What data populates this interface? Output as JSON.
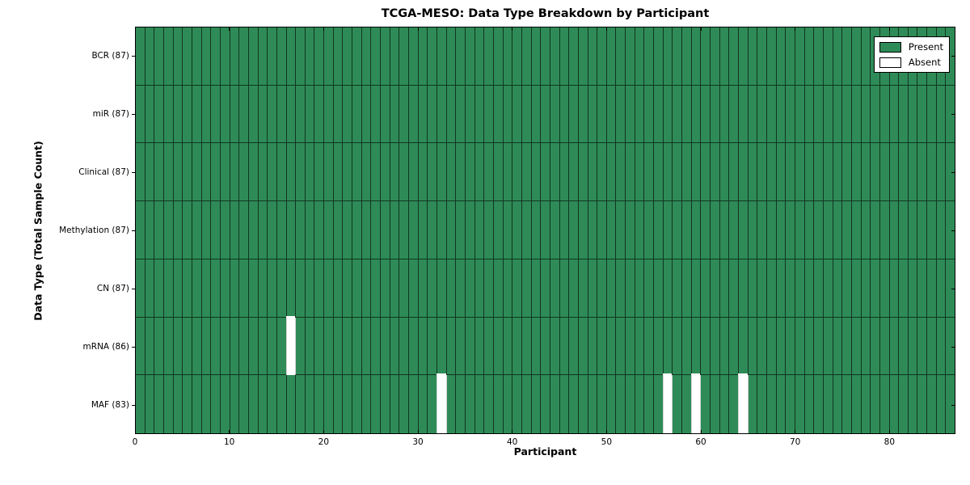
{
  "chart_data": {
    "type": "heatmap",
    "title": "TCGA-MESO: Data Type Breakdown by Participant",
    "xlabel": "Participant",
    "ylabel": "Data Type (Total Sample Count)",
    "xlim": [
      0,
      87
    ],
    "n_participants": 87,
    "x_ticks": [
      0,
      10,
      20,
      30,
      40,
      50,
      60,
      70,
      80
    ],
    "rows": [
      {
        "data_type": "BCR",
        "label": "BCR (87)",
        "present_count": 87,
        "absent_participants": []
      },
      {
        "data_type": "miR",
        "label": "miR (87)",
        "present_count": 87,
        "absent_participants": []
      },
      {
        "data_type": "Clinical",
        "label": "Clinical (87)",
        "present_count": 87,
        "absent_participants": []
      },
      {
        "data_type": "Methylation",
        "label": "Methylation (87)",
        "present_count": 87,
        "absent_participants": []
      },
      {
        "data_type": "CN",
        "label": "CN (87)",
        "present_count": 87,
        "absent_participants": []
      },
      {
        "data_type": "mRNA",
        "label": "mRNA (86)",
        "present_count": 86,
        "absent_participants": [
          16
        ]
      },
      {
        "data_type": "MAF",
        "label": "MAF (83)",
        "present_count": 83,
        "absent_participants": [
          32,
          56,
          59,
          64
        ]
      }
    ],
    "legend": {
      "position": "upper right",
      "entries": [
        {
          "label": "Present",
          "color": "#2E8B57"
        },
        {
          "label": "Absent",
          "color": "#FFFFFF"
        }
      ]
    },
    "colors": {
      "present": "#2E8B57",
      "absent": "#FFFFFF",
      "edge": "#000000",
      "background": "#FFFFFF"
    }
  }
}
